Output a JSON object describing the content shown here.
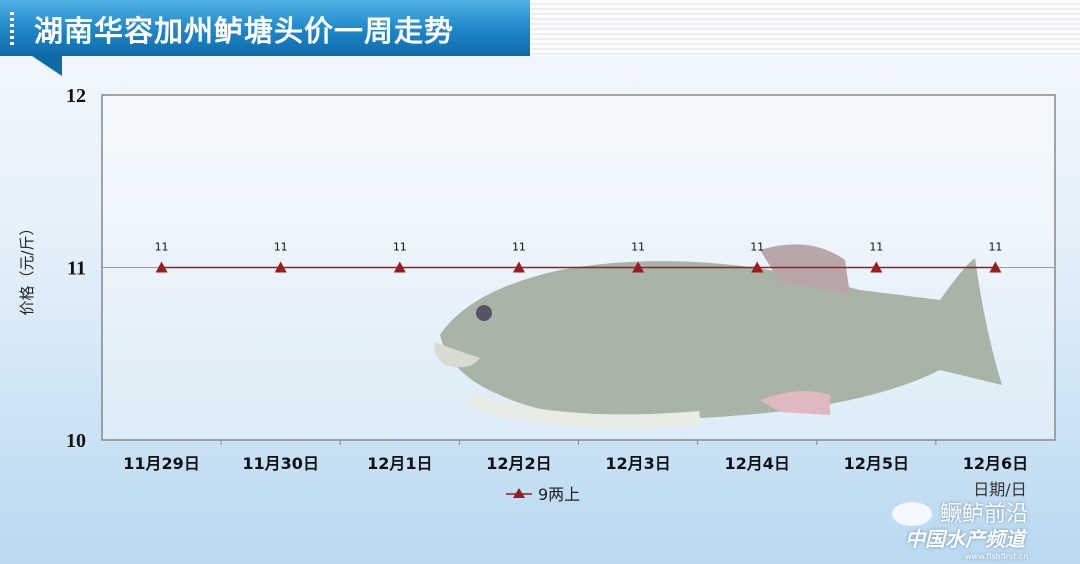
{
  "header": {
    "title": "湖南华容加州鲈塘头价一周走势"
  },
  "chart_data": {
    "type": "line",
    "title": "湖南华容加州鲈塘头价一周走势",
    "xlabel": "日期/日",
    "ylabel": "价格（元/斤）",
    "categories": [
      "11月29日",
      "11月30日",
      "12月1日",
      "12月2日",
      "12月3日",
      "12月4日",
      "12月5日",
      "12月6日"
    ],
    "ylim": [
      10,
      12
    ],
    "yticks": [
      "10",
      "11",
      "12"
    ],
    "grid": true,
    "legend": "bottom",
    "series": [
      {
        "name": "9两上",
        "values": [
          11,
          11,
          11,
          11,
          11,
          11,
          11,
          11
        ],
        "labels": [
          "11",
          "11",
          "11",
          "11",
          "11",
          "11",
          "11",
          "11"
        ],
        "color": "#9b1c1c",
        "marker": "triangle"
      }
    ]
  },
  "watermark": {
    "line1": "鳜鲈前沿",
    "line2": "中国水产频道",
    "line3": "www.fishfirst.cn"
  }
}
